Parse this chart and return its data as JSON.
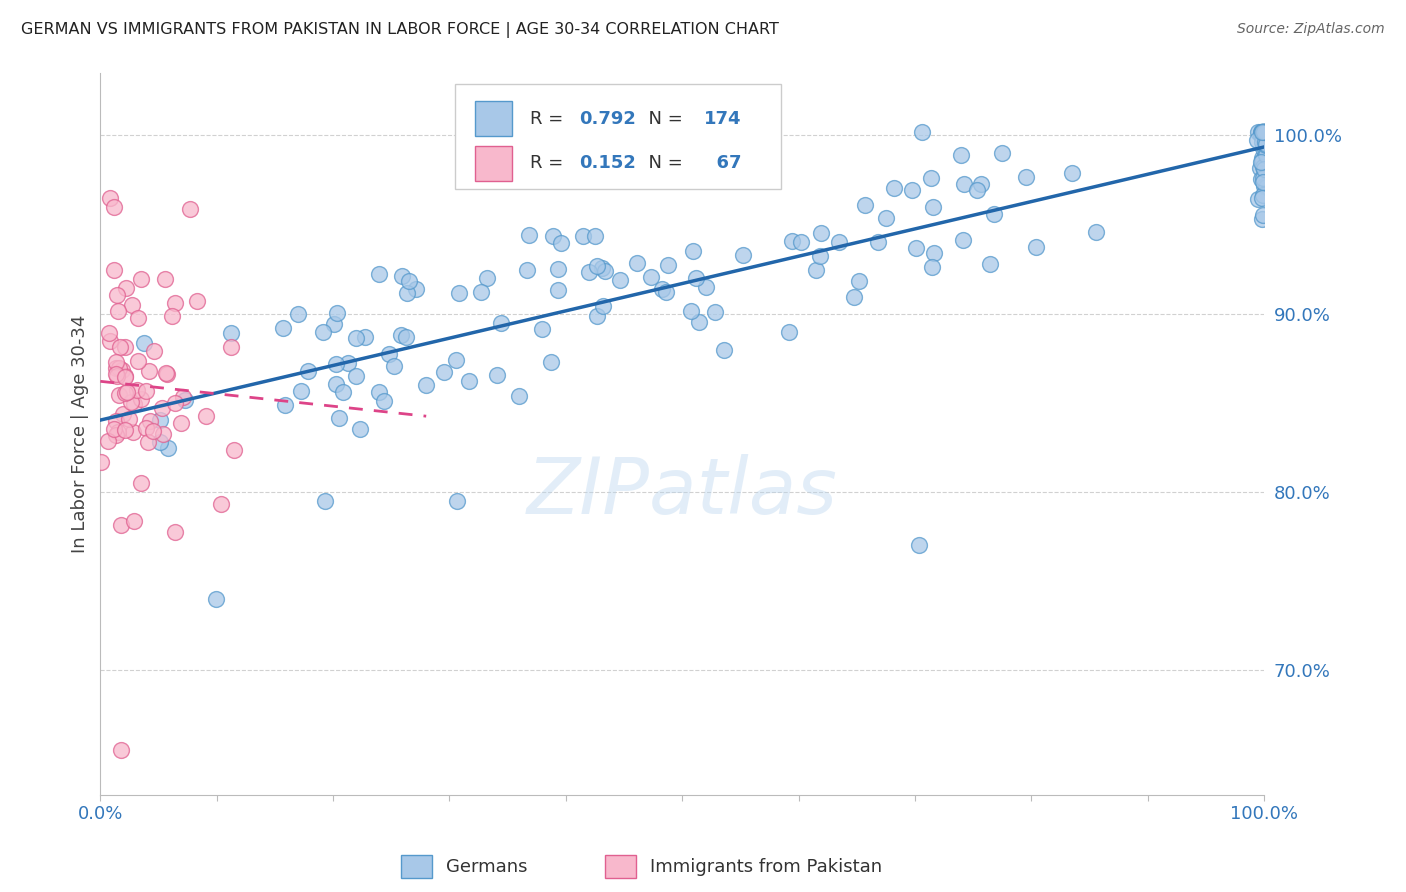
{
  "title": "GERMAN VS IMMIGRANTS FROM PAKISTAN IN LABOR FORCE | AGE 30-34 CORRELATION CHART",
  "source": "Source: ZipAtlas.com",
  "ylabel": "In Labor Force | Age 30-34",
  "xlim": [
    0.0,
    1.0
  ],
  "ylim": [
    0.63,
    1.035
  ],
  "ytick_labels": [
    "70.0%",
    "80.0%",
    "90.0%",
    "100.0%"
  ],
  "ytick_values": [
    0.7,
    0.8,
    0.9,
    1.0
  ],
  "blue_color": "#a8c8e8",
  "blue_edge_color": "#5599cc",
  "pink_color": "#f8b8cc",
  "pink_edge_color": "#e06090",
  "blue_line_color": "#2266aa",
  "pink_line_color": "#dd4488",
  "R_blue": 0.792,
  "N_blue": 174,
  "R_pink": 0.152,
  "N_pink": 67,
  "watermark": "ZIPatlas",
  "axis_label_color": "#3377bb",
  "background_color": "#ffffff",
  "grid_color": "#cccccc"
}
